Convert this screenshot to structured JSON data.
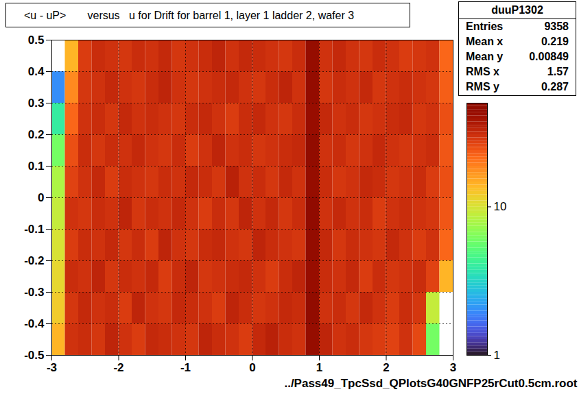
{
  "chart_data": {
    "type": "heatmap",
    "title": "<u - uP>       versus   u for Drift for barrel 1, layer 1 ladder 2, wafer 3",
    "x_label": "../Pass49_TpcSsd_QPlotsG40GNFP25rCut0.5cm.root",
    "xlim": [
      -3,
      3
    ],
    "xticks": [
      -3,
      -2,
      -1,
      0,
      1,
      2,
      3
    ],
    "ylim": [
      -0.5,
      0.5
    ],
    "yticks": [
      -0.5,
      -0.4,
      -0.3,
      -0.2,
      -0.1,
      0,
      0.1,
      0.2,
      0.3,
      0.4,
      0.5
    ],
    "grid": true,
    "x_edges": [
      -3,
      -2.8,
      -2.6,
      -2.4,
      -2.2,
      -2,
      -1.8,
      -1.6,
      -1.4,
      -1.2,
      -1,
      -0.8,
      -0.6,
      -0.4,
      -0.2,
      0,
      0.2,
      0.4,
      0.6,
      0.8,
      1,
      1.2,
      1.4,
      1.6,
      1.8,
      2,
      2.2,
      2.4,
      2.6,
      2.8,
      3
    ],
    "y_edges": [
      -0.5,
      -0.4,
      -0.3,
      -0.2,
      -0.1,
      0,
      0.1,
      0.2,
      0.3,
      0.4,
      0.5
    ],
    "counts": [
      [
        14,
        30,
        31,
        29,
        33,
        30,
        28,
        32,
        31,
        30,
        29,
        33,
        31,
        30,
        28,
        32,
        34,
        31,
        30,
        44,
        33,
        30,
        31,
        29,
        28,
        27,
        30,
        26,
        6,
        0
      ],
      [
        12,
        29,
        32,
        30,
        31,
        28,
        33,
        30,
        29,
        32,
        31,
        30,
        28,
        33,
        31,
        29,
        30,
        32,
        31,
        46,
        30,
        31,
        29,
        32,
        30,
        28,
        31,
        29,
        9,
        0
      ],
      [
        11,
        31,
        30,
        33,
        29,
        31,
        30,
        32,
        28,
        31,
        33,
        29,
        30,
        31,
        32,
        30,
        28,
        31,
        33,
        43,
        31,
        30,
        32,
        28,
        31,
        29,
        30,
        31,
        27,
        14
      ],
      [
        10,
        28,
        31,
        30,
        32,
        29,
        31,
        28,
        33,
        30,
        29,
        31,
        32,
        30,
        29,
        33,
        31,
        30,
        29,
        45,
        32,
        29,
        31,
        30,
        29,
        32,
        30,
        28,
        30,
        22
      ],
      [
        9,
        30,
        29,
        31,
        30,
        33,
        29,
        31,
        30,
        32,
        30,
        28,
        31,
        29,
        33,
        30,
        32,
        29,
        31,
        47,
        30,
        32,
        30,
        31,
        28,
        30,
        31,
        30,
        29,
        24
      ],
      [
        8,
        27,
        30,
        32,
        28,
        31,
        30,
        29,
        31,
        30,
        32,
        31,
        29,
        34,
        30,
        31,
        29,
        32,
        30,
        44,
        31,
        29,
        30,
        32,
        31,
        29,
        30,
        31,
        28,
        25
      ],
      [
        6,
        25,
        31,
        29,
        31,
        30,
        32,
        30,
        29,
        31,
        28,
        30,
        33,
        30,
        31,
        29,
        30,
        31,
        32,
        46,
        30,
        31,
        29,
        30,
        32,
        30,
        29,
        30,
        31,
        24
      ],
      [
        4,
        22,
        30,
        31,
        29,
        32,
        30,
        31,
        30,
        29,
        31,
        32,
        30,
        28,
        31,
        32,
        30,
        29,
        31,
        43,
        32,
        30,
        31,
        29,
        30,
        31,
        32,
        29,
        30,
        25
      ],
      [
        2,
        18,
        29,
        30,
        32,
        30,
        29,
        31,
        33,
        30,
        29,
        30,
        31,
        32,
        30,
        29,
        31,
        33,
        30,
        45,
        29,
        31,
        30,
        32,
        29,
        30,
        31,
        30,
        29,
        23
      ],
      [
        0,
        14,
        28,
        31,
        30,
        29,
        31,
        30,
        32,
        29,
        30,
        31,
        33,
        30,
        32,
        31,
        30,
        29,
        31,
        44,
        30,
        32,
        30,
        29,
        31,
        30,
        28,
        29,
        30,
        22
      ]
    ],
    "colorbar": {
      "log": true,
      "range": [
        1,
        50
      ],
      "ticks": [
        1,
        10
      ]
    },
    "stats": {
      "title": "duuP1302",
      "rows": [
        {
          "name": "Entries",
          "value": 9358
        },
        {
          "name": "Mean x",
          "value": 0.219
        },
        {
          "name": "Mean y",
          "value": 0.00849
        },
        {
          "name": "RMS x",
          "value": 1.57
        },
        {
          "name": "RMS y",
          "value": 0.287
        }
      ]
    }
  }
}
